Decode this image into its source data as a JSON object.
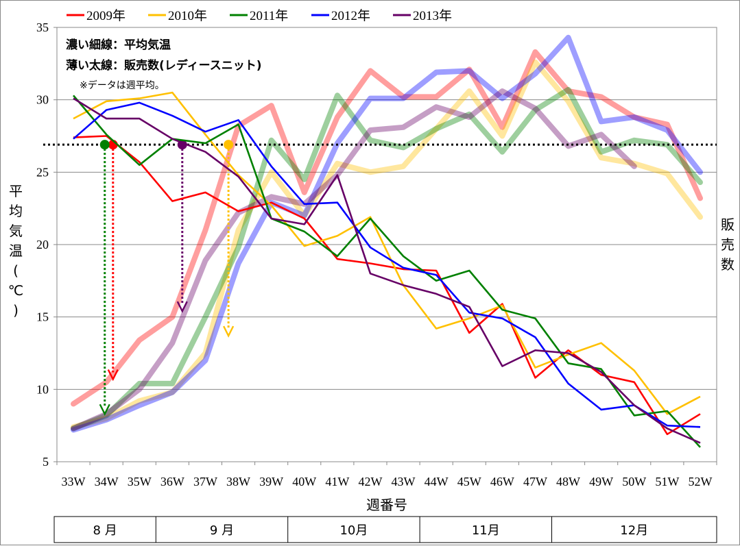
{
  "chart_data": {
    "type": "line",
    "title": "",
    "xlabel": "週番号",
    "ylabel": "平均気温(℃)",
    "y2label": "販売数",
    "ylim": [
      5,
      35
    ],
    "yticks": [
      "35",
      "30",
      "25",
      "20",
      "15",
      "10",
      "5"
    ],
    "categories": [
      "33W",
      "34W",
      "35W",
      "36W",
      "37W",
      "38W",
      "39W",
      "40W",
      "41W",
      "42W",
      "43W",
      "44W",
      "45W",
      "46W",
      "47W",
      "48W",
      "49W",
      "50W",
      "51W",
      "52W"
    ],
    "grid": true,
    "legend_position": "top",
    "notes": [
      "濃い細線：平均気温",
      "薄い太線：販売数(レディースニット)",
      "※データは週平均。"
    ],
    "reference_line_value": 26.9,
    "months": [
      "8 月",
      "9 月",
      "10月",
      "11月",
      "12月"
    ],
    "series": [
      {
        "name": "2009年",
        "color": "#ff0000",
        "temperature": [
          27.4,
          27.5,
          25.7,
          23.0,
          23.6,
          22.3,
          22.9,
          21.8,
          19.0,
          18.7,
          18.3,
          18.2,
          13.9,
          15.9,
          10.8,
          12.7,
          11.0,
          10.5,
          6.9,
          8.3
        ],
        "sales": [
          9.0,
          10.5,
          13.4,
          15.0,
          21.0,
          28.2,
          29.6,
          23.6,
          28.8,
          32.0,
          30.2,
          30.2,
          32.1,
          28.1,
          33.3,
          30.6,
          30.2,
          28.8,
          28.3,
          23.2
        ]
      },
      {
        "name": "2010年",
        "color": "#ffc000",
        "temperature": [
          28.7,
          29.9,
          30.1,
          30.5,
          27.6,
          24.8,
          22.7,
          19.9,
          20.6,
          21.9,
          17.2,
          14.2,
          14.9,
          15.8,
          11.5,
          12.4,
          13.2,
          11.3,
          8.3,
          9.5
        ],
        "sales": [
          7.4,
          8.0,
          9.2,
          9.8,
          12.5,
          21.0,
          25.0,
          22.0,
          25.6,
          25.0,
          25.4,
          28.0,
          30.6,
          27.5,
          32.6,
          29.9,
          26.0,
          25.6,
          24.9,
          21.9
        ]
      },
      {
        "name": "2011年",
        "color": "#008000",
        "temperature": [
          30.3,
          27.6,
          25.5,
          27.3,
          27.0,
          28.3,
          21.8,
          20.9,
          19.2,
          21.8,
          19.2,
          17.5,
          18.2,
          15.5,
          14.9,
          11.8,
          11.4,
          8.2,
          8.5,
          6.0
        ],
        "sales": [
          7.3,
          8.2,
          10.4,
          10.4,
          15.0,
          19.8,
          27.2,
          24.5,
          30.3,
          27.2,
          26.7,
          28.0,
          29.0,
          26.4,
          29.3,
          30.7,
          26.4,
          27.2,
          26.9,
          24.3
        ]
      },
      {
        "name": "2012年",
        "color": "#0000ff",
        "temperature": [
          27.3,
          29.3,
          29.8,
          28.9,
          27.8,
          28.6,
          25.4,
          22.8,
          22.9,
          19.8,
          18.4,
          17.9,
          15.3,
          14.9,
          13.6,
          10.4,
          8.6,
          8.9,
          7.5,
          7.4
        ],
        "sales": [
          7.2,
          7.9,
          8.9,
          9.8,
          12.0,
          18.7,
          22.9,
          22.0,
          27.0,
          30.1,
          30.1,
          31.9,
          32.0,
          30.1,
          31.8,
          34.3,
          28.5,
          28.8,
          27.9,
          25.0
        ]
      },
      {
        "name": "2013年",
        "color": "#660066",
        "temperature": [
          30.1,
          28.7,
          28.7,
          27.3,
          26.4,
          24.7,
          21.8,
          21.4,
          24.8,
          18.0,
          17.2,
          16.6,
          15.7,
          11.6,
          12.7,
          12.5,
          11.2,
          8.9,
          7.3,
          6.3
        ],
        "sales": [
          7.3,
          8.3,
          10.0,
          13.2,
          18.9,
          22.2,
          23.3,
          22.8,
          24.8,
          27.9,
          28.1,
          29.5,
          28.8,
          30.6,
          29.4,
          26.8,
          27.6,
          25.4,
          null,
          null
        ]
      }
    ]
  }
}
